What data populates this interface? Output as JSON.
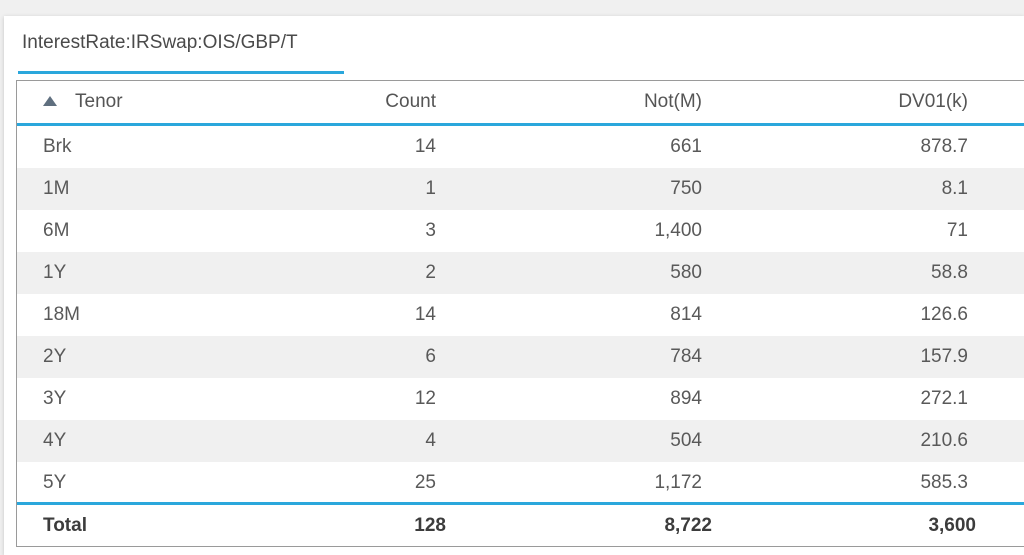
{
  "tab": {
    "title": "InterestRate:IRSwap:OIS/GBP/T"
  },
  "table": {
    "columns": [
      "Tenor",
      "Count",
      "Not(M)",
      "DV01(k)"
    ],
    "sort": {
      "column": "Tenor",
      "direction": "ascending",
      "icon": "sort-ascending-icon"
    },
    "rows": [
      [
        "Brk",
        "14",
        "661",
        "878.7"
      ],
      [
        "1M",
        "1",
        "750",
        "8.1"
      ],
      [
        "6M",
        "3",
        "1,400",
        "71"
      ],
      [
        "1Y",
        "2",
        "580",
        "58.8"
      ],
      [
        "18M",
        "14",
        "814",
        "126.6"
      ],
      [
        "2Y",
        "6",
        "784",
        "157.9"
      ],
      [
        "3Y",
        "12",
        "894",
        "272.1"
      ],
      [
        "4Y",
        "4",
        "504",
        "210.6"
      ],
      [
        "5Y",
        "25",
        "1,172",
        "585.3"
      ]
    ],
    "total": [
      "Total",
      "128",
      "8,722",
      "3,600"
    ]
  },
  "colors": {
    "accent": "#2aa7dc",
    "row_alt": "#f0f0f0",
    "text": "#555555"
  }
}
